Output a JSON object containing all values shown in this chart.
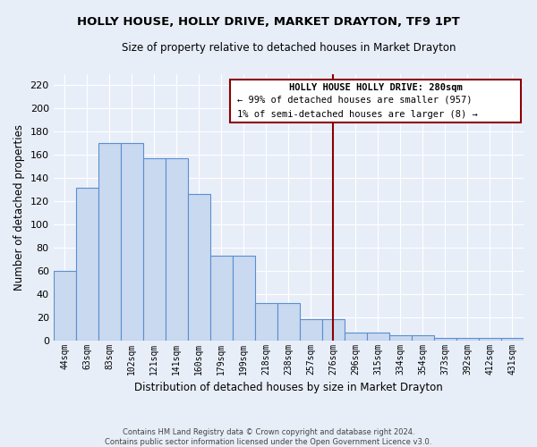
{
  "title": "HOLLY HOUSE, HOLLY DRIVE, MARKET DRAYTON, TF9 1PT",
  "subtitle": "Size of property relative to detached houses in Market Drayton",
  "xlabel": "Distribution of detached houses by size in Market Drayton",
  "ylabel": "Number of detached properties",
  "footer1": "Contains HM Land Registry data © Crown copyright and database right 2024.",
  "footer2": "Contains public sector information licensed under the Open Government Licence v3.0.",
  "categories": [
    "44sqm",
    "63sqm",
    "83sqm",
    "102sqm",
    "121sqm",
    "141sqm",
    "160sqm",
    "179sqm",
    "199sqm",
    "218sqm",
    "238sqm",
    "257sqm",
    "276sqm",
    "296sqm",
    "315sqm",
    "334sqm",
    "354sqm",
    "373sqm",
    "392sqm",
    "412sqm",
    "431sqm"
  ],
  "values": [
    60,
    132,
    170,
    170,
    157,
    157,
    126,
    73,
    73,
    32,
    32,
    18,
    18,
    7,
    7,
    4,
    4,
    2,
    2,
    2,
    2
  ],
  "bar_color": "#c9d9f0",
  "bar_edge_color": "#5b8fcf",
  "background_color": "#e8eef8",
  "grid_color": "#d0d8e8",
  "vline_color": "#8b0000",
  "annotation_title": "HOLLY HOUSE HOLLY DRIVE: 280sqm",
  "annotation_line1": "← 99% of detached houses are smaller (957)",
  "annotation_line2": "1% of semi-detached houses are larger (8) →",
  "ylim": [
    0,
    230
  ],
  "yticks": [
    0,
    20,
    40,
    60,
    80,
    100,
    120,
    140,
    160,
    180,
    200,
    220
  ]
}
